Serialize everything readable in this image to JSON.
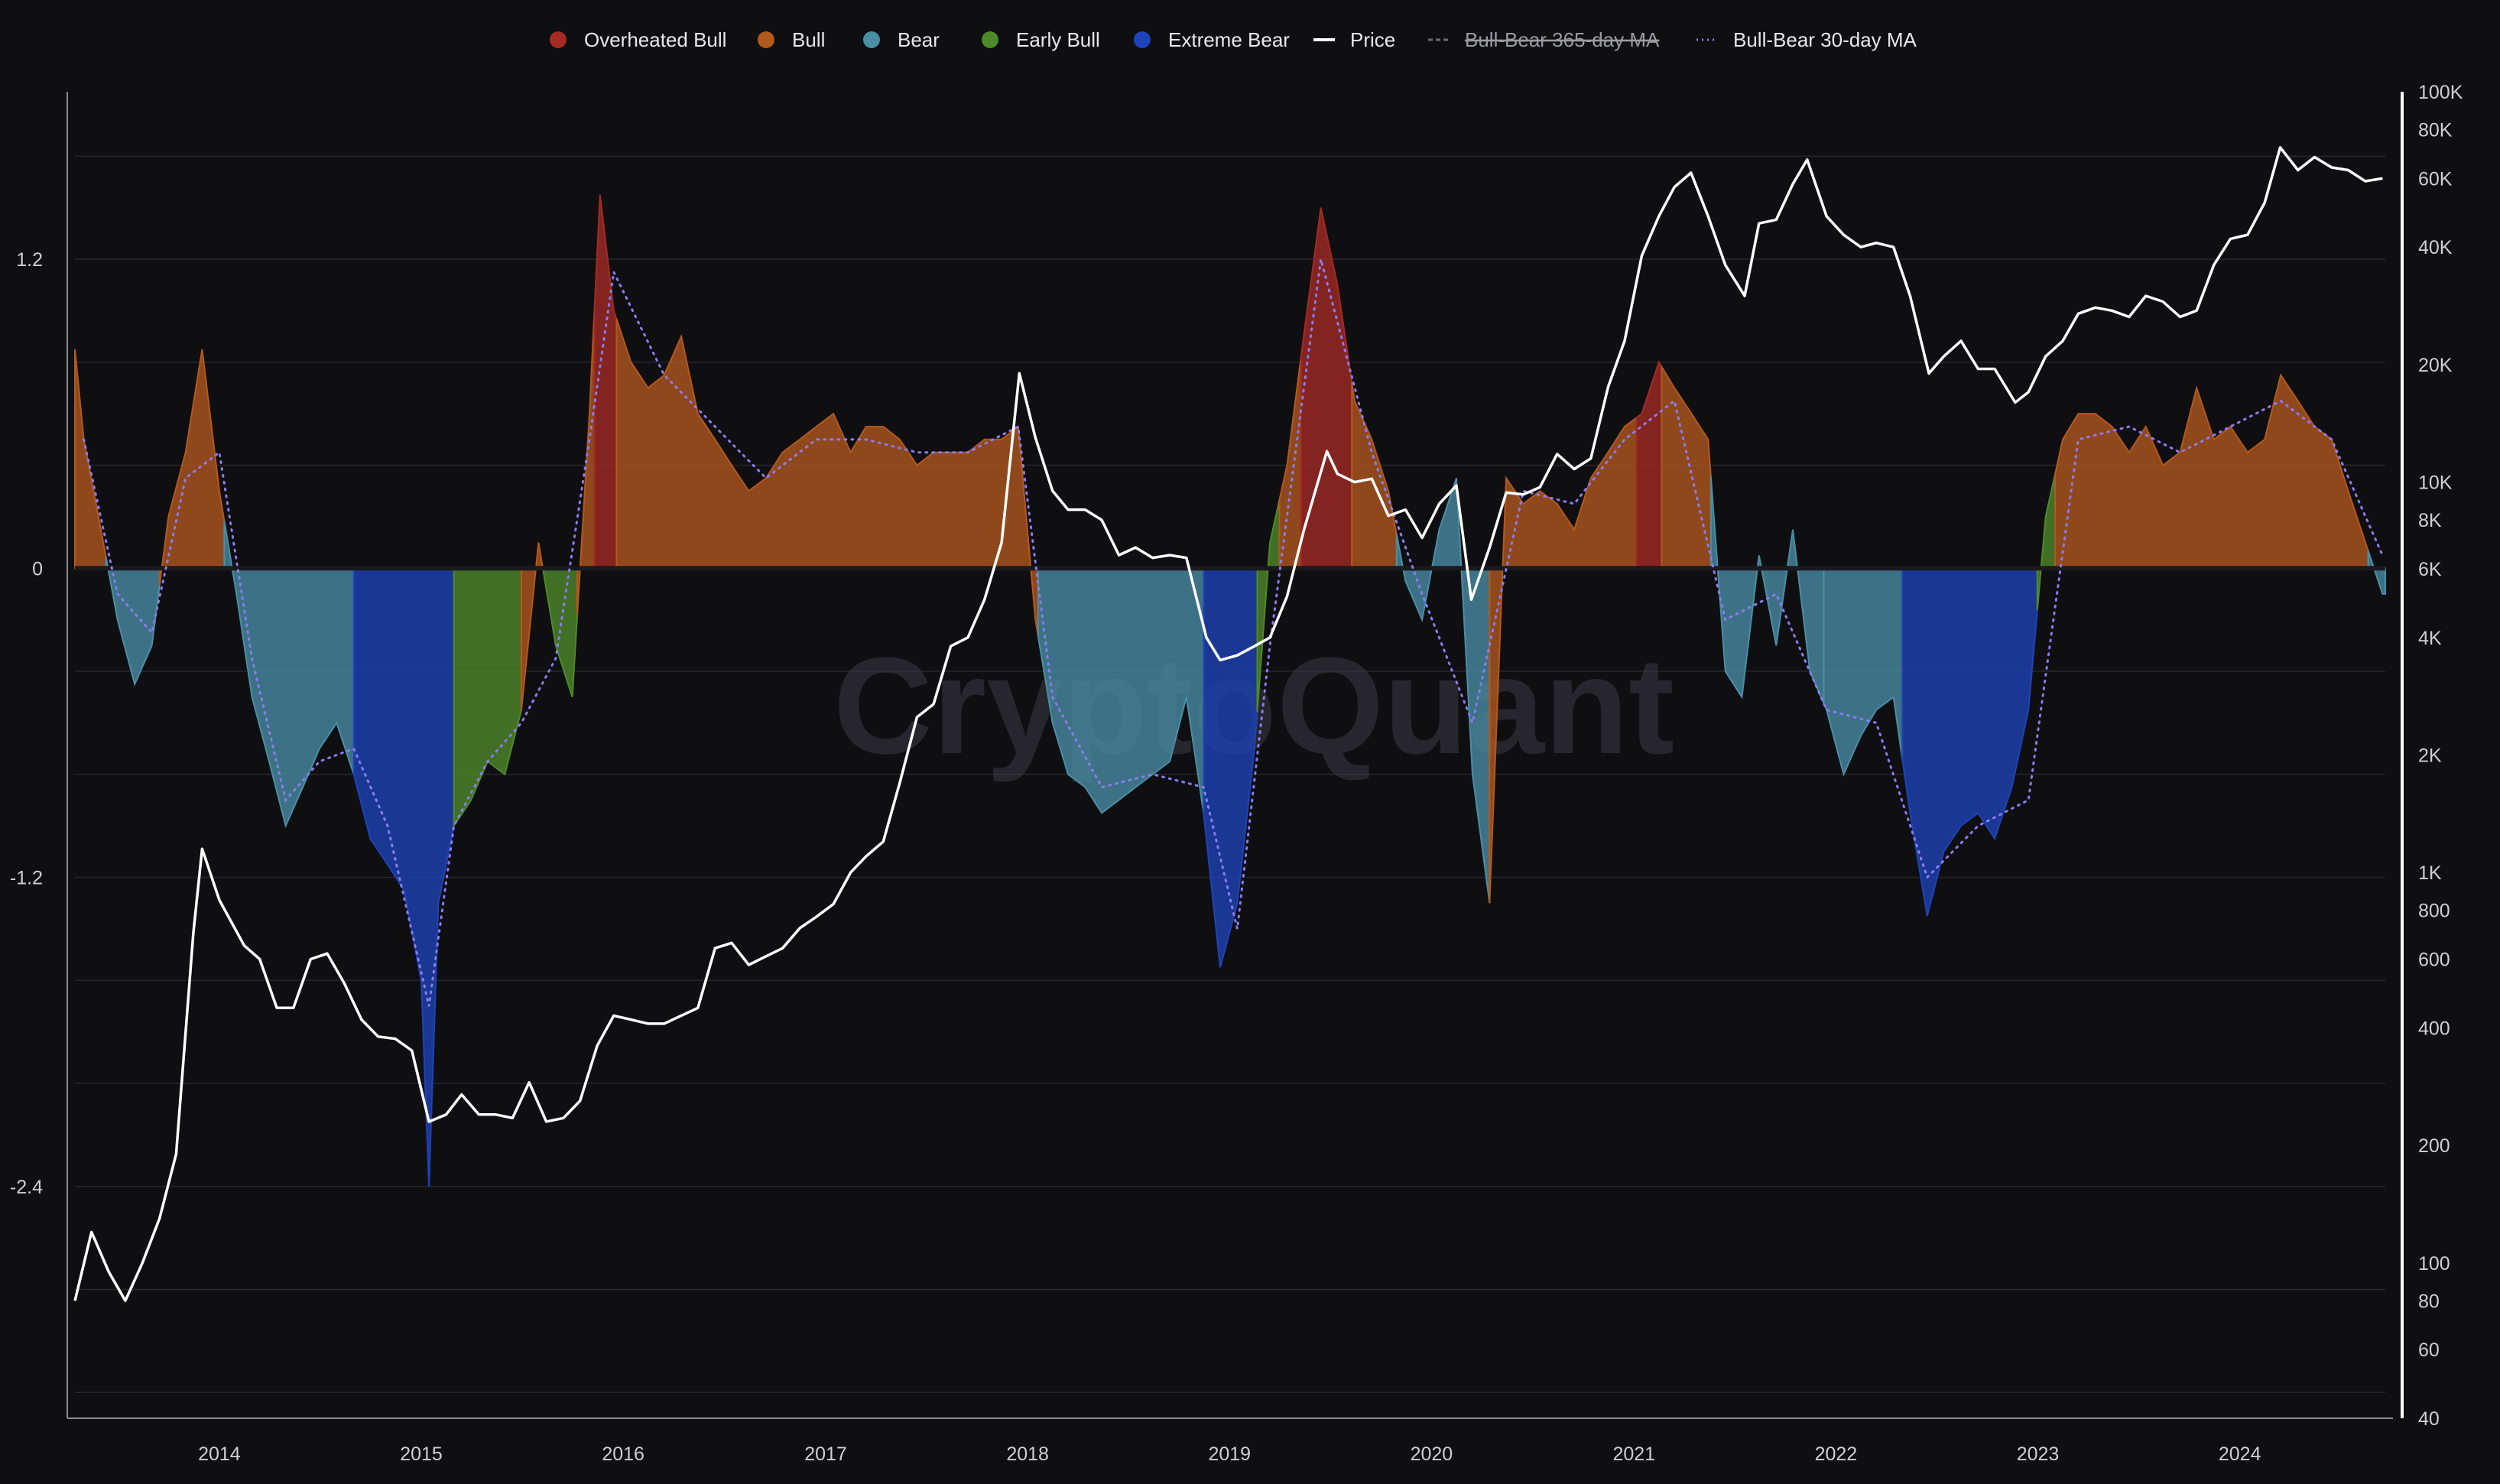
{
  "watermark": "CryptoQuant",
  "colors": {
    "background": "#0f0f12",
    "grid": "#26262c",
    "overheated_bull": "#a52a24",
    "bull": "#b3591e",
    "bear": "#4a8ea6",
    "early_bull": "#4f8a2a",
    "extreme_bear": "#1f43b8",
    "price": "#ffffff",
    "ma365": "#6b6b72",
    "ma30": "#8a7cf0"
  },
  "legend": [
    {
      "key": "overheated_bull",
      "label": "Overheated Bull",
      "marker": "dot"
    },
    {
      "key": "bull",
      "label": "Bull",
      "marker": "dot"
    },
    {
      "key": "bear",
      "label": "Bear",
      "marker": "dot"
    },
    {
      "key": "early_bull",
      "label": "Early Bull",
      "marker": "dot"
    },
    {
      "key": "extreme_bear",
      "label": "Extreme Bear",
      "marker": "dot"
    },
    {
      "key": "price",
      "label": "Price",
      "marker": "line"
    },
    {
      "key": "ma365",
      "label": "Bull-Bear 365-day MA",
      "marker": "dash",
      "hidden": true
    },
    {
      "key": "ma30",
      "label": "Bull-Bear 30-day MA",
      "marker": "dotted"
    }
  ],
  "chart_data": {
    "type": "area",
    "x_axis": {
      "type": "date",
      "range": [
        "2013-04-15",
        "2024-09-20"
      ],
      "ticks": [
        "2014",
        "2015",
        "2016",
        "2017",
        "2018",
        "2019",
        "2020",
        "2021",
        "2022",
        "2023",
        "2024"
      ]
    },
    "y_left": {
      "range": [
        -3.3,
        1.85
      ],
      "ticks": [
        1.2,
        0,
        -1.2,
        -2.4
      ],
      "tick_labels": [
        "1.2",
        "0",
        "-1.2",
        "-2.4"
      ]
    },
    "y_right": {
      "scale": "log",
      "range": [
        40,
        100000
      ],
      "ticks": [
        100000,
        80000,
        60000,
        40000,
        20000,
        10000,
        8000,
        6000,
        4000,
        2000,
        1000,
        800,
        600,
        400,
        200,
        100,
        80,
        60,
        40
      ],
      "tick_labels": [
        "100K",
        "80K",
        "60K",
        "40K",
        "20K",
        "10K",
        "8K",
        "6K",
        "4K",
        "2K",
        "1K",
        "800",
        "600",
        "400",
        "200",
        "100",
        "80",
        "60",
        "40"
      ]
    },
    "grid": true,
    "legend_position": "top-center",
    "regimes": [
      {
        "start": "2013-04-15",
        "end": "2013-06-10",
        "state": "bull"
      },
      {
        "start": "2013-06-10",
        "end": "2013-09-15",
        "state": "bear"
      },
      {
        "start": "2013-09-15",
        "end": "2014-01-10",
        "state": "bull"
      },
      {
        "start": "2014-01-10",
        "end": "2014-09-01",
        "state": "bear"
      },
      {
        "start": "2014-09-01",
        "end": "2015-03-01",
        "state": "extreme_bear"
      },
      {
        "start": "2015-03-01",
        "end": "2015-07-01",
        "state": "early_bull"
      },
      {
        "start": "2015-07-01",
        "end": "2015-08-10",
        "state": "bull"
      },
      {
        "start": "2015-08-10",
        "end": "2015-10-10",
        "state": "early_bull"
      },
      {
        "start": "2015-10-10",
        "end": "2015-11-10",
        "state": "bull"
      },
      {
        "start": "2015-11-10",
        "end": "2015-12-20",
        "state": "overheated_bull"
      },
      {
        "start": "2015-12-20",
        "end": "2018-01-20",
        "state": "bull"
      },
      {
        "start": "2018-01-20",
        "end": "2018-11-15",
        "state": "bear"
      },
      {
        "start": "2018-11-15",
        "end": "2019-02-20",
        "state": "extreme_bear"
      },
      {
        "start": "2019-02-20",
        "end": "2019-04-01",
        "state": "early_bull"
      },
      {
        "start": "2019-04-01",
        "end": "2019-05-10",
        "state": "bull"
      },
      {
        "start": "2019-05-10",
        "end": "2019-08-10",
        "state": "overheated_bull"
      },
      {
        "start": "2019-08-10",
        "end": "2019-10-30",
        "state": "bull"
      },
      {
        "start": "2019-10-30",
        "end": "2020-04-15",
        "state": "bear"
      },
      {
        "start": "2020-04-15",
        "end": "2021-01-05",
        "state": "bull"
      },
      {
        "start": "2021-01-05",
        "end": "2021-02-20",
        "state": "overheated_bull"
      },
      {
        "start": "2021-02-20",
        "end": "2021-05-20",
        "state": "bull"
      },
      {
        "start": "2021-05-20",
        "end": "2021-12-10",
        "state": "bear"
      },
      {
        "start": "2021-12-10",
        "end": "2022-05-01",
        "state": "bear"
      },
      {
        "start": "2022-05-01",
        "end": "2022-12-31",
        "state": "extreme_bear"
      },
      {
        "start": "2022-12-31",
        "end": "2023-02-01",
        "state": "early_bull"
      },
      {
        "start": "2023-02-01",
        "end": "2024-08-20",
        "state": "bull"
      },
      {
        "start": "2024-08-20",
        "end": "2024-09-20",
        "state": "bear"
      }
    ],
    "series": [
      {
        "name": "Bull-Bear",
        "x": [
          "2013-04-15",
          "2013-05-01",
          "2013-06-01",
          "2013-07-01",
          "2013-08-01",
          "2013-09-01",
          "2013-10-01",
          "2013-11-01",
          "2013-12-01",
          "2014-01-01",
          "2014-02-01",
          "2014-03-01",
          "2014-04-01",
          "2014-05-01",
          "2014-06-01",
          "2014-07-01",
          "2014-08-01",
          "2014-09-01",
          "2014-10-01",
          "2014-11-01",
          "2014-12-01",
          "2015-01-01",
          "2015-01-15",
          "2015-02-01",
          "2015-03-01",
          "2015-04-01",
          "2015-05-01",
          "2015-06-01",
          "2015-07-01",
          "2015-08-01",
          "2015-09-01",
          "2015-10-01",
          "2015-11-01",
          "2015-11-20",
          "2015-12-15",
          "2016-01-15",
          "2016-02-15",
          "2016-03-15",
          "2016-04-15",
          "2016-05-15",
          "2016-06-15",
          "2016-07-15",
          "2016-08-15",
          "2016-09-15",
          "2016-10-15",
          "2016-11-15",
          "2016-12-15",
          "2017-01-15",
          "2017-02-15",
          "2017-03-15",
          "2017-04-15",
          "2017-05-15",
          "2017-06-15",
          "2017-07-15",
          "2017-08-15",
          "2017-09-15",
          "2017-10-15",
          "2017-11-15",
          "2017-12-15",
          "2018-01-15",
          "2018-02-15",
          "2018-03-15",
          "2018-04-15",
          "2018-05-15",
          "2018-06-15",
          "2018-07-15",
          "2018-08-15",
          "2018-09-15",
          "2018-10-15",
          "2018-11-15",
          "2018-12-15",
          "2019-01-15",
          "2019-02-15",
          "2019-03-15",
          "2019-04-15",
          "2019-05-15",
          "2019-06-15",
          "2019-07-15",
          "2019-08-15",
          "2019-09-15",
          "2019-10-15",
          "2019-11-15",
          "2019-12-15",
          "2020-01-15",
          "2020-02-15",
          "2020-03-15",
          "2020-04-15",
          "2020-05-15",
          "2020-06-15",
          "2020-07-15",
          "2020-08-15",
          "2020-09-15",
          "2020-10-15",
          "2020-11-15",
          "2020-12-15",
          "2021-01-15",
          "2021-02-15",
          "2021-03-15",
          "2021-04-15",
          "2021-05-15",
          "2021-06-15",
          "2021-07-15",
          "2021-08-15",
          "2021-09-15",
          "2021-10-15",
          "2021-11-15",
          "2021-12-15",
          "2022-01-15",
          "2022-02-15",
          "2022-03-15",
          "2022-04-15",
          "2022-05-15",
          "2022-06-15",
          "2022-07-15",
          "2022-08-15",
          "2022-09-15",
          "2022-10-15",
          "2022-11-15",
          "2022-12-15",
          "2023-01-15",
          "2023-02-15",
          "2023-03-15",
          "2023-04-15",
          "2023-05-15",
          "2023-06-15",
          "2023-07-15",
          "2023-08-15",
          "2023-09-15",
          "2023-10-15",
          "2023-11-15",
          "2023-12-15",
          "2024-01-15",
          "2024-02-15",
          "2024-03-15",
          "2024-04-15",
          "2024-05-15",
          "2024-06-15",
          "2024-07-15",
          "2024-08-15",
          "2024-09-15"
        ],
        "values": [
          0.85,
          0.5,
          0.15,
          -0.2,
          -0.45,
          -0.3,
          0.2,
          0.45,
          0.85,
          0.3,
          -0.1,
          -0.5,
          -0.75,
          -1.0,
          -0.85,
          -0.7,
          -0.6,
          -0.8,
          -1.05,
          -1.15,
          -1.25,
          -1.6,
          -2.4,
          -1.3,
          -1.0,
          -0.9,
          -0.75,
          -0.8,
          -0.55,
          0.1,
          -0.3,
          -0.5,
          0.6,
          1.45,
          1.0,
          0.8,
          0.7,
          0.75,
          0.9,
          0.6,
          0.5,
          0.4,
          0.3,
          0.35,
          0.45,
          0.5,
          0.55,
          0.6,
          0.45,
          0.55,
          0.55,
          0.5,
          0.4,
          0.45,
          0.45,
          0.45,
          0.5,
          0.5,
          0.55,
          -0.2,
          -0.6,
          -0.8,
          -0.85,
          -0.95,
          -0.9,
          -0.85,
          -0.8,
          -0.75,
          -0.5,
          -0.95,
          -1.55,
          -1.3,
          -0.7,
          0.1,
          0.4,
          0.9,
          1.4,
          1.1,
          0.65,
          0.5,
          0.3,
          -0.05,
          -0.2,
          0.15,
          0.35,
          -0.8,
          -1.3,
          0.35,
          0.25,
          0.3,
          0.25,
          0.15,
          0.35,
          0.45,
          0.55,
          0.6,
          0.8,
          0.7,
          0.6,
          0.5,
          -0.4,
          -0.5,
          0.05,
          -0.3,
          0.15,
          -0.4,
          -0.55,
          -0.8,
          -0.65,
          -0.55,
          -0.5,
          -0.95,
          -1.35,
          -1.1,
          -1.0,
          -0.95,
          -1.05,
          -0.85,
          -0.55,
          0.2,
          0.5,
          0.6,
          0.6,
          0.55,
          0.45,
          0.55,
          0.4,
          0.45,
          0.7,
          0.5,
          0.55,
          0.45,
          0.5,
          0.75,
          0.65,
          0.55,
          0.5,
          0.3,
          0.1,
          -0.1
        ]
      },
      {
        "name": "Price",
        "x": [
          "2013-04-15",
          "2013-05-15",
          "2013-06-15",
          "2013-07-15",
          "2013-08-15",
          "2013-09-15",
          "2013-10-15",
          "2013-11-15",
          "2013-12-01",
          "2014-01-01",
          "2014-02-15",
          "2014-03-15",
          "2014-04-15",
          "2014-05-15",
          "2014-06-15",
          "2014-07-15",
          "2014-08-15",
          "2014-09-15",
          "2014-10-15",
          "2014-11-15",
          "2014-12-15",
          "2015-01-15",
          "2015-02-15",
          "2015-03-15",
          "2015-04-15",
          "2015-05-15",
          "2015-06-15",
          "2015-07-15",
          "2015-08-15",
          "2015-09-15",
          "2015-10-15",
          "2015-11-15",
          "2015-12-15",
          "2016-01-15",
          "2016-02-15",
          "2016-03-15",
          "2016-04-15",
          "2016-05-15",
          "2016-06-15",
          "2016-07-15",
          "2016-08-15",
          "2016-09-15",
          "2016-10-15",
          "2016-11-15",
          "2016-12-15",
          "2017-01-15",
          "2017-02-15",
          "2017-03-15",
          "2017-04-15",
          "2017-05-15",
          "2017-06-15",
          "2017-07-15",
          "2017-08-15",
          "2017-09-15",
          "2017-10-15",
          "2017-11-15",
          "2017-12-17",
          "2018-01-15",
          "2018-02-15",
          "2018-03-15",
          "2018-04-15",
          "2018-05-15",
          "2018-06-15",
          "2018-07-15",
          "2018-08-15",
          "2018-09-15",
          "2018-10-15",
          "2018-11-20",
          "2018-12-15",
          "2019-01-15",
          "2019-02-15",
          "2019-03-15",
          "2019-04-15",
          "2019-05-15",
          "2019-06-26",
          "2019-07-15",
          "2019-08-15",
          "2019-09-15",
          "2019-10-15",
          "2019-11-15",
          "2019-12-15",
          "2020-01-15",
          "2020-02-15",
          "2020-03-13",
          "2020-04-15",
          "2020-05-15",
          "2020-06-15",
          "2020-07-15",
          "2020-08-15",
          "2020-09-15",
          "2020-10-15",
          "2020-11-15",
          "2020-12-15",
          "2021-01-15",
          "2021-02-15",
          "2021-03-15",
          "2021-04-14",
          "2021-05-15",
          "2021-06-15",
          "2021-07-20",
          "2021-08-15",
          "2021-09-15",
          "2021-10-15",
          "2021-11-10",
          "2021-12-15",
          "2022-01-15",
          "2022-02-15",
          "2022-03-15",
          "2022-04-15",
          "2022-05-15",
          "2022-06-18",
          "2022-07-15",
          "2022-08-15",
          "2022-09-15",
          "2022-10-15",
          "2022-11-21",
          "2022-12-15",
          "2023-01-15",
          "2023-02-15",
          "2023-03-15",
          "2023-04-15",
          "2023-05-15",
          "2023-06-15",
          "2023-07-15",
          "2023-08-15",
          "2023-09-15",
          "2023-10-15",
          "2023-11-15",
          "2023-12-15",
          "2024-01-15",
          "2024-02-15",
          "2024-03-14",
          "2024-04-15",
          "2024-05-15",
          "2024-06-15",
          "2024-07-15",
          "2024-08-15",
          "2024-09-15"
        ],
        "values": [
          80,
          120,
          95,
          80,
          100,
          130,
          190,
          700,
          1150,
          850,
          650,
          600,
          450,
          450,
          600,
          620,
          520,
          420,
          380,
          375,
          350,
          230,
          240,
          270,
          240,
          240,
          235,
          290,
          230,
          235,
          260,
          360,
          430,
          420,
          410,
          410,
          430,
          450,
          640,
          660,
          580,
          610,
          640,
          720,
          770,
          830,
          1000,
          1100,
          1200,
          1700,
          2500,
          2700,
          3800,
          4000,
          5000,
          7000,
          19000,
          13000,
          9500,
          8500,
          8500,
          8000,
          6500,
          6800,
          6400,
          6500,
          6400,
          4000,
          3500,
          3600,
          3800,
          4000,
          5100,
          7500,
          12000,
          10500,
          10000,
          10200,
          8200,
          8500,
          7200,
          8800,
          9800,
          5000,
          6800,
          9400,
          9300,
          9700,
          11800,
          10800,
          11500,
          17500,
          23000,
          38000,
          48000,
          57000,
          62000,
          48000,
          36000,
          30000,
          46000,
          47000,
          58000,
          67000,
          48000,
          43000,
          40000,
          41000,
          40000,
          30000,
          19000,
          21000,
          23000,
          19500,
          19500,
          16000,
          17000,
          21000,
          23000,
          27000,
          28000,
          27500,
          26500,
          30000,
          29000,
          26500,
          27500,
          36000,
          42000,
          43000,
          52000,
          72000,
          63000,
          68000,
          64000,
          63000,
          59000,
          60000
        ]
      },
      {
        "name": "Bull-Bear 30-day MA",
        "x": [
          "2013-05-01",
          "2013-07-01",
          "2013-09-01",
          "2013-11-01",
          "2014-01-01",
          "2014-03-01",
          "2014-05-01",
          "2014-07-01",
          "2014-09-01",
          "2014-11-01",
          "2015-01-15",
          "2015-03-01",
          "2015-05-01",
          "2015-07-01",
          "2015-09-01",
          "2015-11-01",
          "2015-12-15",
          "2016-03-15",
          "2016-06-15",
          "2016-09-15",
          "2016-12-15",
          "2017-03-15",
          "2017-06-15",
          "2017-09-15",
          "2017-12-15",
          "2018-02-15",
          "2018-05-15",
          "2018-08-15",
          "2018-11-15",
          "2019-01-15",
          "2019-03-15",
          "2019-06-15",
          "2019-09-15",
          "2019-12-15",
          "2020-03-15",
          "2020-06-15",
          "2020-09-15",
          "2020-12-15",
          "2021-03-15",
          "2021-06-15",
          "2021-09-15",
          "2021-12-15",
          "2022-03-15",
          "2022-06-15",
          "2022-09-15",
          "2022-12-15",
          "2023-03-15",
          "2023-06-15",
          "2023-09-15",
          "2023-12-15",
          "2024-03-15",
          "2024-06-15",
          "2024-09-15"
        ],
        "values": [
          0.5,
          -0.1,
          -0.25,
          0.35,
          0.45,
          -0.35,
          -0.9,
          -0.75,
          -0.7,
          -1.0,
          -1.7,
          -1.0,
          -0.75,
          -0.6,
          -0.35,
          0.5,
          1.15,
          0.75,
          0.55,
          0.35,
          0.5,
          0.5,
          0.45,
          0.45,
          0.55,
          -0.5,
          -0.85,
          -0.8,
          -0.85,
          -1.4,
          -0.3,
          1.2,
          0.45,
          -0.1,
          -0.6,
          0.3,
          0.25,
          0.5,
          0.65,
          -0.2,
          -0.1,
          -0.55,
          -0.6,
          -1.2,
          -1.0,
          -0.9,
          0.5,
          0.55,
          0.45,
          0.55,
          0.65,
          0.5,
          0.05
        ]
      }
    ]
  }
}
